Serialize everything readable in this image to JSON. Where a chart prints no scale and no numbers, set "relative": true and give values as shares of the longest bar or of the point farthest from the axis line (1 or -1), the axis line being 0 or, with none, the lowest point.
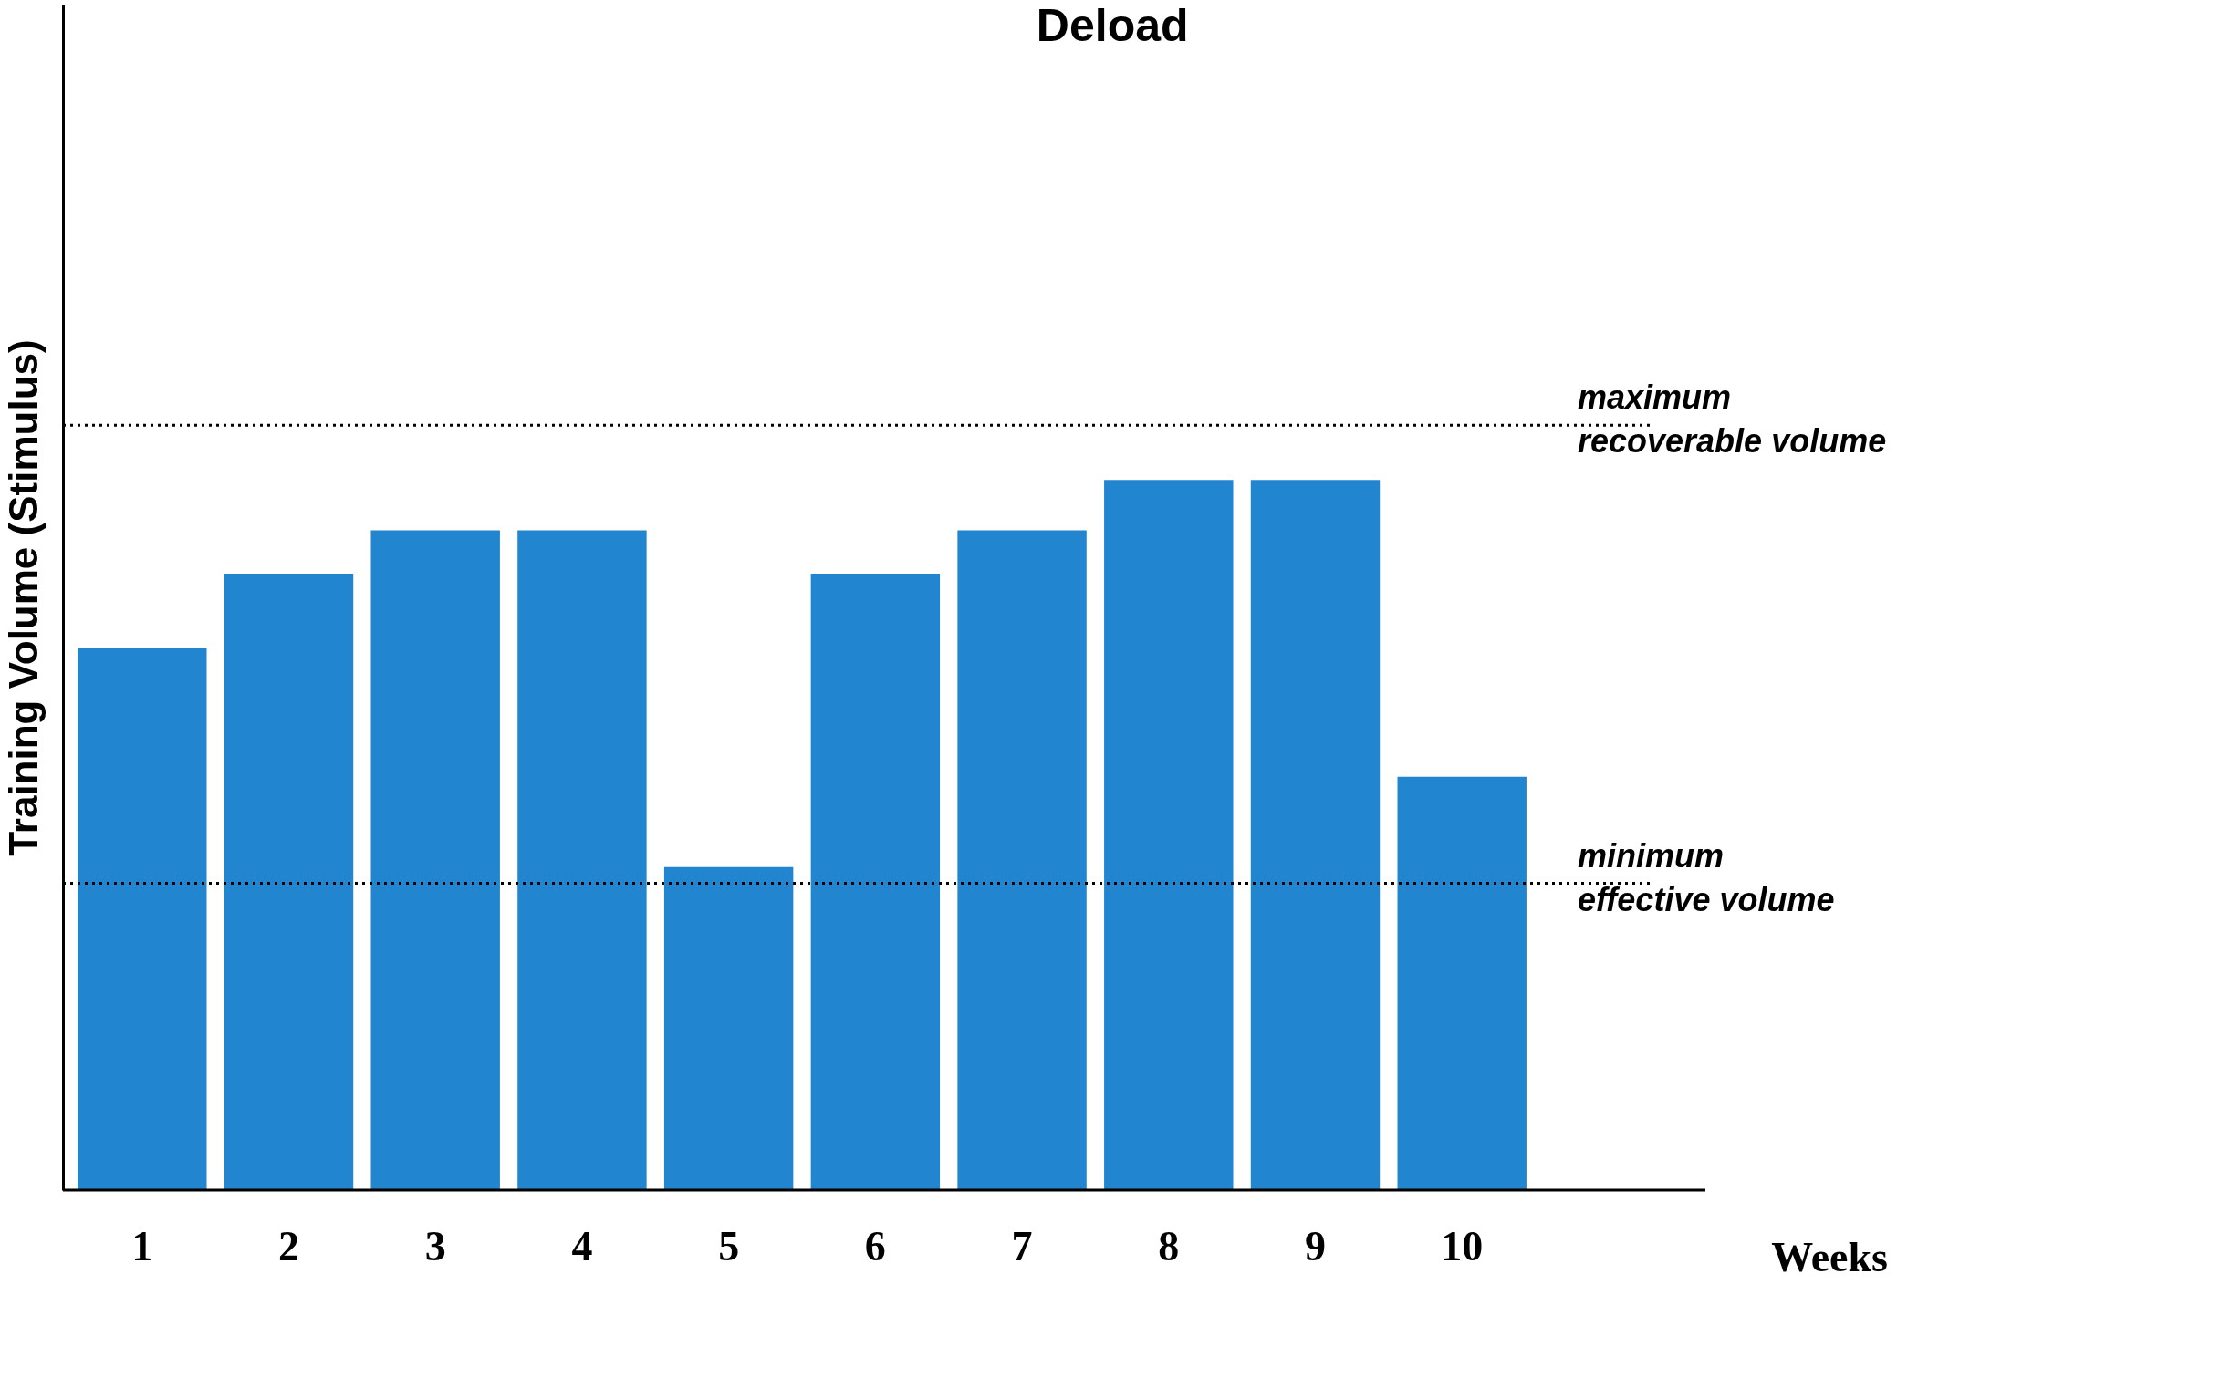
{
  "chart_data": {
    "type": "bar",
    "relative": true,
    "ylabel": "Training Volume (Stimulus)",
    "xlabel": "Weeks",
    "categories": [
      "1",
      "2",
      "3",
      "4",
      "5",
      "6",
      "7",
      "8",
      "9",
      "10"
    ],
    "values": [
      0.763,
      0.868,
      0.929,
      0.929,
      0.455,
      0.868,
      0.929,
      1,
      1,
      0.582
    ],
    "color": "#2185d0",
    "ref_lines": [
      {
        "axis": "y",
        "value": 1.077,
        "label": "maximum\nrecoverable volume",
        "line_style": "dotted"
      },
      {
        "axis": "y",
        "value": 0.432,
        "label": "minimum\neffective volume",
        "line_style": "dotted"
      }
    ],
    "annotations": [
      "Deload"
    ]
  }
}
